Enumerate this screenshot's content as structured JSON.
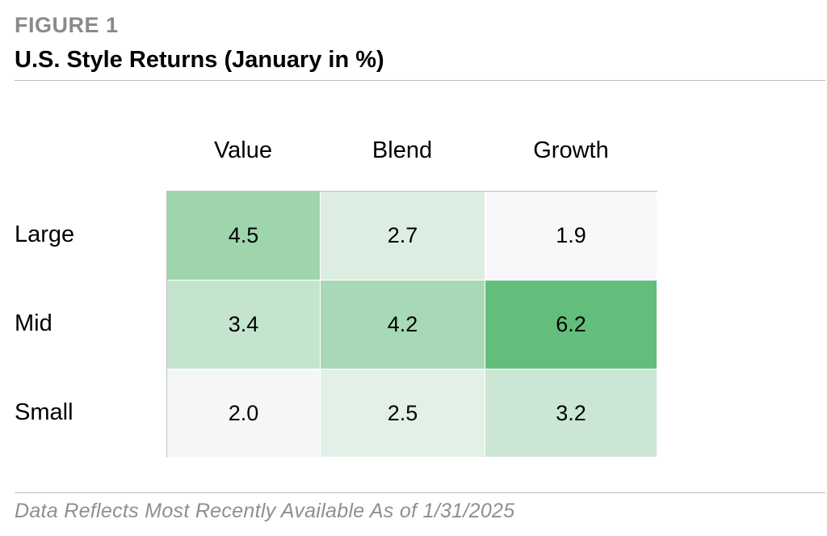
{
  "figure_label": "FIGURE 1",
  "title": "U.S. Style Returns (January in %)",
  "footnote": "Data Reflects Most Recently Available As of 1/31/2025",
  "colors": {
    "low": "#f8f8fa",
    "high": "#63be7b"
  },
  "chart_data": {
    "type": "heatmap",
    "title": "U.S. Style Returns (January in %)",
    "columns": [
      "Value",
      "Blend",
      "Growth"
    ],
    "rows": [
      "Large",
      "Mid",
      "Small"
    ],
    "values": [
      [
        4.5,
        2.7,
        1.9
      ],
      [
        3.4,
        4.2,
        6.2
      ],
      [
        2.0,
        2.5,
        3.2
      ]
    ],
    "value_labels": [
      [
        "4.5",
        "2.7",
        "1.9"
      ],
      [
        "3.4",
        "4.2",
        "6.2"
      ],
      [
        "2.0",
        "2.5",
        "3.2"
      ]
    ]
  }
}
